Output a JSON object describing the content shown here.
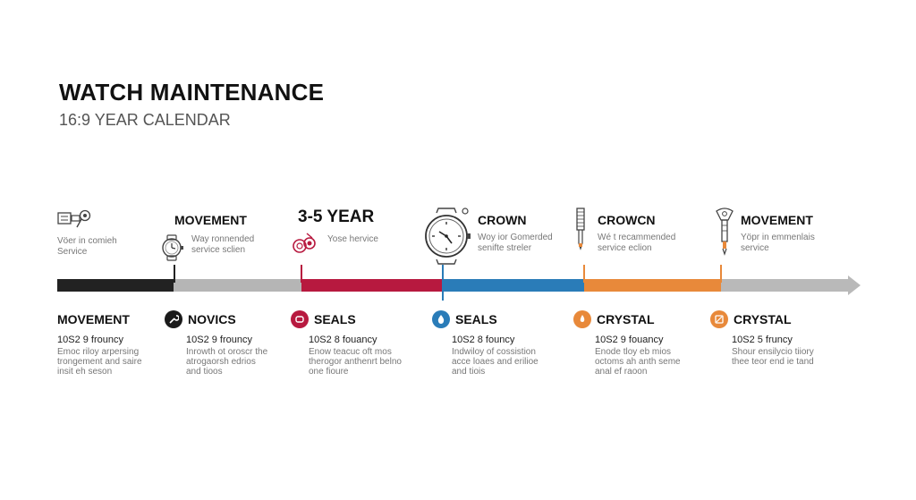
{
  "header": {
    "title": "WATCH MAINTENANCE",
    "subtitle": "16:9 YEAR CALENDAR"
  },
  "colors": {
    "black": "#222222",
    "gray": "#b5b5b5",
    "red": "#b7193f",
    "blue": "#2a7cb8",
    "orange": "#e8893a",
    "arrow_gray": "#b9b9b9"
  },
  "top_items": [
    {
      "label": "",
      "note_lines": [
        "Vöer in comieh",
        "Service"
      ],
      "icon": "tools-icon"
    },
    {
      "label": "MOVEMENT",
      "note_lines": [
        "Way ronnended",
        "service sclien"
      ],
      "icon": "watch-icon"
    },
    {
      "label": "3-5 YEAR",
      "note_lines": [
        "Yose hervice"
      ],
      "icon": "gasket-icon"
    },
    {
      "label": "CROWN",
      "note_lines": [
        "Woy ior Gomerded",
        "senifte streler"
      ],
      "icon": "wristwatch-icon"
    },
    {
      "label": "CROWCN",
      "note_lines": [
        "Wé t recammended",
        "service eclion"
      ],
      "icon": "file-tool-icon"
    },
    {
      "label": "MOVEMENT",
      "note_lines": [
        "Yöpr in emmenlais",
        "service"
      ],
      "icon": "caseback-opener-icon"
    }
  ],
  "bottom_items": [
    {
      "name": "MOVEMENT",
      "freq": "10S2 9 frouncy",
      "desc": "Emoc riloy arpersing\ntrongement and saire\ninsit eh seson",
      "icon": "",
      "color": ""
    },
    {
      "name": "NOVICS",
      "freq": "10S2 9 frouncy",
      "desc": "Inrowth ot oroscr the\natrogaorsh edrios\nand tioos",
      "icon": "wrench-icon",
      "color": "#1a1a1a"
    },
    {
      "name": "SEALS",
      "freq": "10S2 8 fouancy",
      "desc": "Enow teacuc oft mos\ntherogor anthenrt belno\none fioure",
      "icon": "seal-icon",
      "color": "#b7193f"
    },
    {
      "name": "SEALS",
      "freq": "10S2 8 founcy",
      "desc": "Indwiloy of cossistion\nacce loaes and erilioe\nand tiois",
      "icon": "drop-icon",
      "color": "#2a7cb8"
    },
    {
      "name": "CRYSTAL",
      "freq": "10S2 9 fouancy",
      "desc": "Enode tloy eb mios\noctoms ah anth seme\nanal ef raoon",
      "icon": "flame-icon",
      "color": "#e8893a"
    },
    {
      "name": "CRYSTAL",
      "freq": "10S2 5 fruncy",
      "desc": "Shour ensilycio tiiory\nthee teor end ie tand",
      "icon": "crystal-icon",
      "color": "#e8893a"
    }
  ]
}
